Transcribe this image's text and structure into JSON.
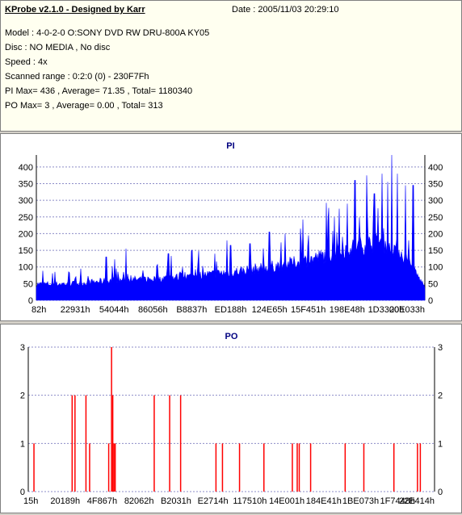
{
  "header": {
    "title": "KProbe v2.1.0 - Designed by Karr",
    "date": "Date : 2005/11/03 20:29:10",
    "lines": [
      "Model : 4-0-2-0 O:SONY     DVD RW DRU-800A  KY05",
      "Disc : NO MEDIA , No disc",
      "Speed : 4x",
      "Scanned range : 0:2:0 (0) - 230F7Fh",
      "PI Max= 436 , Average= 71.35 , Total= 1180340",
      "PO Max= 3 , Average= 0.00 , Total= 313"
    ]
  },
  "colors": {
    "pi": "#0000ff",
    "po": "#ff0000",
    "grid": "#8c8cc8",
    "title": "#000080"
  },
  "chart_data": [
    {
      "type": "bar",
      "title": "PI",
      "ylim": [
        0,
        436
      ],
      "yticks": [
        0,
        50,
        100,
        150,
        200,
        250,
        300,
        350,
        400
      ],
      "xticks": [
        "82h",
        "22931h",
        "54044h",
        "86056h",
        "B8837h",
        "ED188h",
        "124E65h",
        "15F451h",
        "198E48h",
        "1D3300h",
        "20E033h"
      ],
      "baseline_profile": [
        [
          0,
          48
        ],
        [
          0.1,
          50
        ],
        [
          0.2,
          60
        ],
        [
          0.3,
          64
        ],
        [
          0.4,
          72
        ],
        [
          0.5,
          84
        ],
        [
          0.6,
          100
        ],
        [
          0.7,
          120
        ],
        [
          0.76,
          140
        ],
        [
          0.82,
          160
        ],
        [
          0.88,
          175
        ],
        [
          0.93,
          155
        ],
        [
          0.96,
          110
        ],
        [
          1,
          40
        ]
      ],
      "spikes": [
        [
          0.18,
          130
        ],
        [
          0.23,
          155
        ],
        [
          0.34,
          140
        ],
        [
          0.4,
          150
        ],
        [
          0.46,
          140
        ],
        [
          0.49,
          180
        ],
        [
          0.5,
          165
        ],
        [
          0.55,
          170
        ],
        [
          0.6,
          205
        ],
        [
          0.64,
          200
        ],
        [
          0.68,
          215
        ],
        [
          0.7,
          195
        ],
        [
          0.75,
          240
        ],
        [
          0.78,
          275
        ],
        [
          0.8,
          290
        ],
        [
          0.82,
          360
        ],
        [
          0.85,
          375
        ],
        [
          0.87,
          320
        ],
        [
          0.89,
          380
        ],
        [
          0.905,
          355
        ],
        [
          0.915,
          436
        ],
        [
          0.93,
          380
        ],
        [
          0.95,
          345
        ],
        [
          0.97,
          345
        ]
      ]
    },
    {
      "type": "bar",
      "title": "PO",
      "ylim": [
        0,
        3
      ],
      "yticks": [
        0,
        1,
        2,
        3
      ],
      "xticks": [
        "15h",
        "20189h",
        "4F867h",
        "82062h",
        "B2031h",
        "E2714h",
        "117510h",
        "14E001h",
        "184E41h",
        "1BE073h",
        "1F7448h",
        "22E414h"
      ],
      "bars": [
        [
          0.014,
          1
        ],
        [
          0.108,
          2
        ],
        [
          0.115,
          2
        ],
        [
          0.142,
          2
        ],
        [
          0.151,
          1
        ],
        [
          0.198,
          1
        ],
        [
          0.205,
          3
        ],
        [
          0.208,
          2
        ],
        [
          0.211,
          1
        ],
        [
          0.214,
          1
        ],
        [
          0.31,
          2
        ],
        [
          0.348,
          2
        ],
        [
          0.375,
          2
        ],
        [
          0.462,
          1
        ],
        [
          0.478,
          1
        ],
        [
          0.52,
          1
        ],
        [
          0.58,
          1
        ],
        [
          0.65,
          1
        ],
        [
          0.662,
          1
        ],
        [
          0.667,
          1
        ],
        [
          0.695,
          1
        ],
        [
          0.78,
          1
        ],
        [
          0.826,
          1
        ],
        [
          0.9,
          1
        ],
        [
          0.958,
          1
        ],
        [
          0.965,
          1
        ]
      ]
    }
  ]
}
